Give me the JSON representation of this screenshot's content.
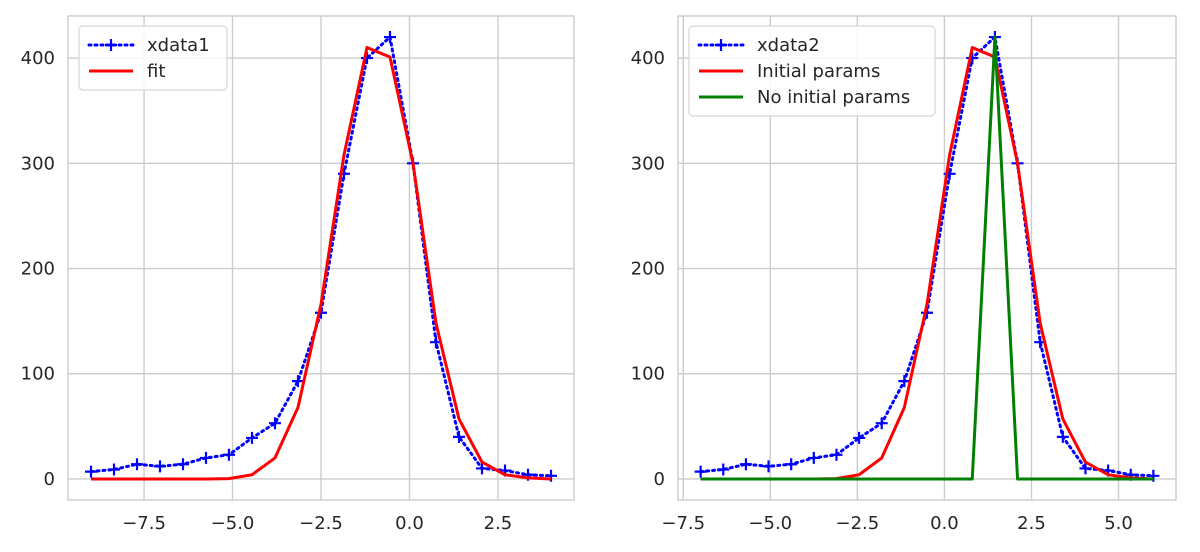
{
  "chart_data": [
    {
      "type": "line",
      "title": "",
      "xlabel": "",
      "ylabel": "",
      "xlim": [
        -9.65,
        4.65
      ],
      "ylim": [
        -20,
        440
      ],
      "xticks": [
        "−7.5",
        "−5.0",
        "−2.5",
        "0.0",
        "2.5"
      ],
      "xtick_values": [
        -7.5,
        -5.0,
        -2.5,
        0.0,
        2.5
      ],
      "yticks": [
        "0",
        "100",
        "200",
        "300",
        "400"
      ],
      "ytick_values": [
        0,
        100,
        200,
        300,
        400
      ],
      "grid": true,
      "legend": "top-left",
      "series": [
        {
          "name": "xdata1",
          "style": "dotted-plus",
          "color": "#0000ff",
          "x": [
            -9.0,
            -8.35,
            -7.7,
            -7.05,
            -6.4,
            -5.75,
            -5.1,
            -4.45,
            -3.8,
            -3.15,
            -2.5,
            -1.85,
            -1.2,
            -0.55,
            0.1,
            0.75,
            1.4,
            2.05,
            2.7,
            3.35,
            4.0
          ],
          "y": [
            7,
            9,
            14,
            12,
            14,
            20,
            23,
            39,
            53,
            93,
            158,
            290,
            400,
            420,
            300,
            130,
            40,
            10,
            8,
            4,
            3
          ]
        },
        {
          "name": "fit",
          "style": "solid",
          "color": "#ff0000",
          "x": [
            -9.0,
            -8.35,
            -7.7,
            -7.05,
            -6.4,
            -5.75,
            -5.1,
            -4.45,
            -3.8,
            -3.15,
            -2.5,
            -1.85,
            -1.2,
            -0.55,
            0.1,
            0.75,
            1.4,
            2.05,
            2.7,
            3.35,
            4.0
          ],
          "y": [
            0,
            0,
            0,
            0,
            0,
            0,
            0.3,
            4,
            20,
            68,
            166,
            308,
            410,
            401,
            300,
            148,
            57,
            16,
            4,
            1,
            0
          ]
        }
      ]
    },
    {
      "type": "line",
      "title": "",
      "xlabel": "",
      "ylabel": "",
      "xlim": [
        -7.65,
        6.65
      ],
      "ylim": [
        -20,
        440
      ],
      "xticks": [
        "−7.5",
        "−5.0",
        "−2.5",
        "0.0",
        "2.5",
        "5.0"
      ],
      "xtick_values": [
        -7.5,
        -5.0,
        -2.5,
        0.0,
        2.5,
        5.0
      ],
      "yticks": [
        "0",
        "100",
        "200",
        "300",
        "400"
      ],
      "ytick_values": [
        0,
        100,
        200,
        300,
        400
      ],
      "grid": true,
      "legend": "top-left",
      "series": [
        {
          "name": "xdata2",
          "style": "dotted-plus",
          "color": "#0000ff",
          "x": [
            -7.0,
            -6.35,
            -5.7,
            -5.05,
            -4.4,
            -3.75,
            -3.1,
            -2.45,
            -1.8,
            -1.15,
            -0.5,
            0.15,
            0.8,
            1.45,
            2.1,
            2.75,
            3.4,
            4.05,
            4.7,
            5.35,
            6.0
          ],
          "y": [
            7,
            9,
            14,
            12,
            14,
            20,
            23,
            39,
            53,
            93,
            158,
            290,
            400,
            420,
            300,
            130,
            40,
            10,
            8,
            4,
            3
          ]
        },
        {
          "name": "Initial params",
          "style": "solid",
          "color": "#ff0000",
          "x": [
            -7.0,
            -6.35,
            -5.7,
            -5.05,
            -4.4,
            -3.75,
            -3.1,
            -2.45,
            -1.8,
            -1.15,
            -0.5,
            0.15,
            0.8,
            1.45,
            2.1,
            2.75,
            3.4,
            4.05,
            4.7,
            5.35,
            6.0
          ],
          "y": [
            0,
            0,
            0,
            0,
            0,
            0,
            0.3,
            4,
            20,
            68,
            166,
            308,
            410,
            401,
            300,
            148,
            57,
            16,
            4,
            1,
            0
          ]
        },
        {
          "name": "No initial params",
          "style": "solid",
          "color": "#008000",
          "x": [
            -7.0,
            -6.35,
            -5.7,
            -5.05,
            -4.4,
            -3.75,
            -3.1,
            -2.45,
            -1.8,
            -1.15,
            -0.5,
            0.15,
            0.8,
            1.45,
            2.1,
            2.75,
            3.4,
            4.05,
            4.7,
            5.35,
            6.0
          ],
          "y": [
            0,
            0,
            0,
            0,
            0,
            0,
            0,
            0,
            0,
            0,
            0,
            0,
            0,
            420,
            0,
            0,
            0,
            0,
            0,
            0,
            0
          ]
        }
      ]
    }
  ]
}
